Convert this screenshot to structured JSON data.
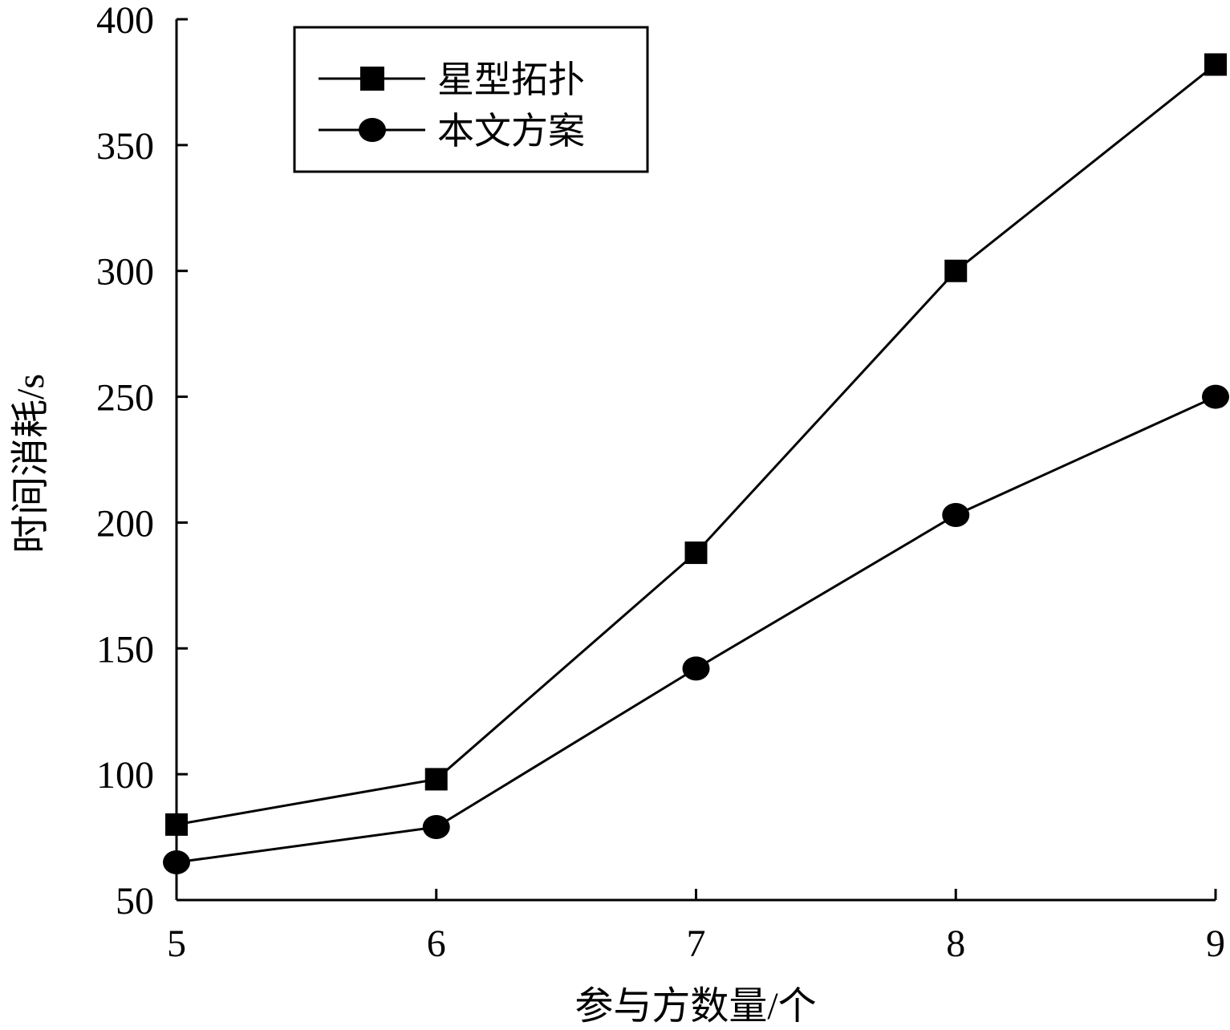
{
  "chart_data": {
    "type": "line",
    "title": "",
    "xlabel": "参与方数量/个",
    "ylabel": "时间消耗/s",
    "x": [
      5,
      6,
      7,
      8,
      9
    ],
    "xlim": [
      5,
      9
    ],
    "ylim": [
      50,
      400
    ],
    "x_ticks": [
      "5",
      "6",
      "7",
      "8",
      "9"
    ],
    "y_ticks": [
      "50",
      "100",
      "150",
      "200",
      "250",
      "300",
      "350",
      "400"
    ],
    "grid": false,
    "legend_position": "top-left",
    "series": [
      {
        "name": "星型拓扑",
        "marker": "square",
        "color": "#000000",
        "values": [
          80,
          98,
          188,
          300,
          382
        ]
      },
      {
        "name": "本文方案",
        "marker": "circle",
        "color": "#000000",
        "values": [
          65,
          79,
          142,
          203,
          250
        ]
      }
    ]
  }
}
